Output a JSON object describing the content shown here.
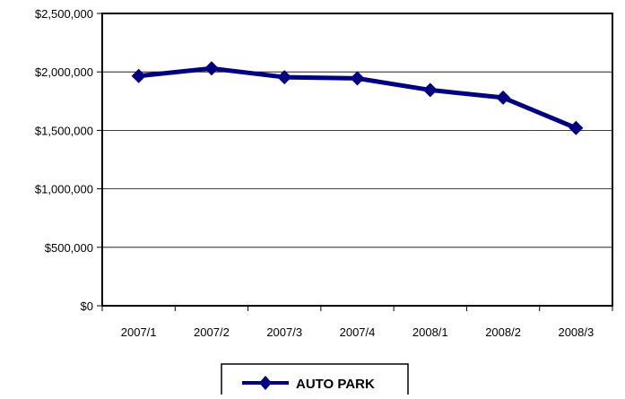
{
  "chart_data": {
    "type": "line",
    "title": "",
    "xlabel": "",
    "ylabel": "",
    "categories": [
      "2007/1",
      "2007/2",
      "2007/3",
      "2007/4",
      "2008/1",
      "2008/2",
      "2008/3"
    ],
    "series": [
      {
        "name": "AUTO PARK",
        "values": [
          1965000,
          2030000,
          1955000,
          1945000,
          1845000,
          1780000,
          1520000
        ],
        "color": "#000080",
        "marker": "diamond"
      }
    ],
    "ylim": [
      0,
      2500000
    ],
    "yticks": [
      0,
      500000,
      1000000,
      1500000,
      2000000,
      2500000
    ],
    "ytick_labels": [
      "$0",
      "$500,000",
      "$1,000,000",
      "$1,500,000",
      "$2,000,000",
      "$2,500,000"
    ],
    "grid": "horizontal",
    "legend": "bottom-center",
    "colors": {
      "line": "#000080",
      "grid": "#000000",
      "frame": "#000000"
    }
  }
}
